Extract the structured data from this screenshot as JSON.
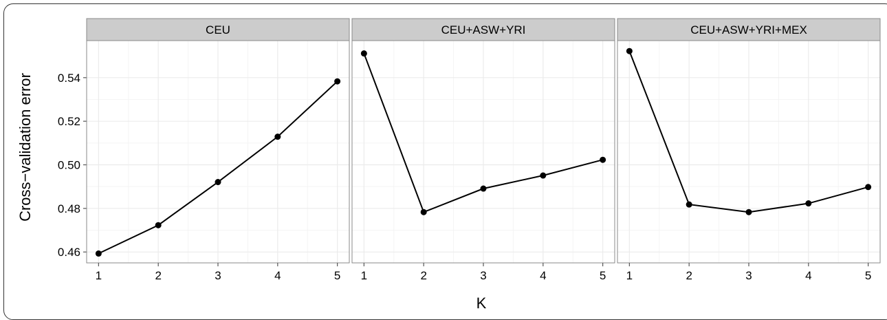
{
  "chart_data": {
    "type": "line",
    "xlabel": "K",
    "ylabel": "Cross−validation error",
    "xlim": [
      0.8,
      5.2
    ],
    "ylim": [
      0.455,
      0.557
    ],
    "x_ticks": [
      1,
      2,
      3,
      4,
      5
    ],
    "y_ticks": [
      0.46,
      0.48,
      0.5,
      0.52,
      0.54
    ],
    "y_tick_labels": [
      "0.46",
      "0.48",
      "0.50",
      "0.52",
      "0.54"
    ],
    "grid": true,
    "line_color": "#000000",
    "panel_background": "#ffffff",
    "strip_background": "#cccccc",
    "grid_color": "#ebebeb",
    "panels": [
      {
        "title": "CEU",
        "x": [
          1,
          2,
          3,
          4,
          5
        ],
        "y": [
          0.4593,
          0.4723,
          0.4921,
          0.5129,
          0.5383
        ]
      },
      {
        "title": "CEU+ASW+YRI",
        "x": [
          1,
          2,
          3,
          4,
          5
        ],
        "y": [
          0.5511,
          0.4783,
          0.4891,
          0.4951,
          0.5023
        ]
      },
      {
        "title": "CEU+ASW+YRI+MEX",
        "x": [
          1,
          2,
          3,
          4,
          5
        ],
        "y": [
          0.5522,
          0.4818,
          0.4783,
          0.4823,
          0.4898
        ]
      }
    ]
  }
}
